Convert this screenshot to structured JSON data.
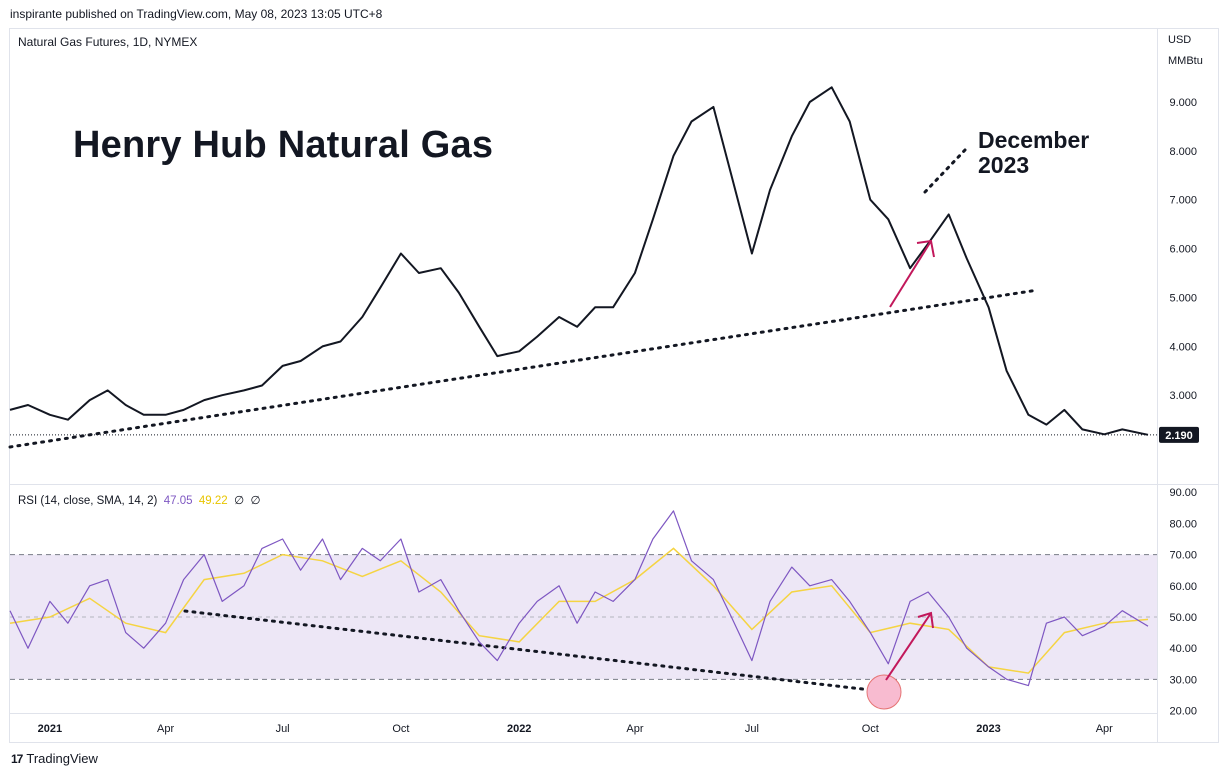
{
  "header": {
    "publisher_line": "inspirante published on TradingView.com, May 08, 2023 13:05 UTC+8",
    "symbol": "Natural Gas Futures, 1D, NYMEX",
    "currency": "USD",
    "unit": "MMBtu"
  },
  "annotations": {
    "headline": "Henry Hub Natural Gas",
    "callout_line1": "December",
    "callout_line2": "2023"
  },
  "rsi_legend": {
    "label": "RSI (14, close, SMA, 14, 2)",
    "rsi_value": "47.05",
    "sma_value": "49.22",
    "extra1": "∅",
    "extra2": "∅"
  },
  "footer": {
    "brand": "TradingView",
    "brand_mark": "17"
  },
  "colors": {
    "price_line": "#131722",
    "rsi_line": "#7e57c2",
    "rsi_sma": "#f5d442",
    "rsi_band": "#ede7f6",
    "arrow": "#c2185b",
    "circle_fill": "#f8bbd0",
    "circle_stroke": "#e57373"
  },
  "chart_data": [
    {
      "type": "line",
      "x_ticks": [
        "2021",
        "Apr",
        "Jul",
        "Oct",
        "2022",
        "Apr",
        "Jul",
        "Oct",
        "2023",
        "Apr"
      ],
      "y_ticks": [
        "3.000",
        "4.000",
        "5.000",
        "6.000",
        "7.000",
        "8.000",
        "9.000"
      ],
      "ylim": [
        1.9,
        9.9
      ],
      "last_price": 2.19,
      "last_price_label": "2.190",
      "series": [
        {
          "x": [
            "2020-12-01",
            "2020-12-15",
            "2021-01-01",
            "2021-01-15",
            "2021-02-01",
            "2021-02-15",
            "2021-03-01",
            "2021-03-15",
            "2021-04-01",
            "2021-04-15",
            "2021-05-01",
            "2021-05-15",
            "2021-06-01",
            "2021-06-15",
            "2021-07-01",
            "2021-07-15",
            "2021-08-01",
            "2021-08-15",
            "2021-09-01",
            "2021-09-15",
            "2021-10-01",
            "2021-10-15",
            "2021-11-01",
            "2021-11-15",
            "2021-12-01",
            "2021-12-15",
            "2022-01-01",
            "2022-01-15",
            "2022-02-01",
            "2022-02-15",
            "2022-03-01",
            "2022-03-15",
            "2022-04-01",
            "2022-04-15",
            "2022-05-01",
            "2022-05-15",
            "2022-06-01",
            "2022-06-15",
            "2022-07-01",
            "2022-07-15",
            "2022-08-01",
            "2022-08-15",
            "2022-09-01",
            "2022-09-15",
            "2022-10-01",
            "2022-10-15",
            "2022-11-01",
            "2022-11-15",
            "2022-12-01",
            "2022-12-15",
            "2023-01-01",
            "2023-01-15",
            "2023-02-01",
            "2023-02-15",
            "2023-03-01",
            "2023-03-15",
            "2023-04-01",
            "2023-04-15",
            "2023-05-05"
          ],
          "values": [
            2.7,
            2.8,
            2.6,
            2.5,
            2.9,
            3.1,
            2.8,
            2.6,
            2.6,
            2.7,
            2.9,
            3.0,
            3.1,
            3.2,
            3.6,
            3.7,
            4.0,
            4.1,
            4.6,
            5.2,
            5.9,
            5.5,
            5.6,
            5.1,
            4.4,
            3.8,
            3.9,
            4.2,
            4.6,
            4.4,
            4.8,
            4.8,
            5.5,
            6.6,
            7.9,
            8.6,
            8.9,
            7.5,
            5.9,
            7.2,
            8.3,
            9.0,
            9.3,
            8.6,
            7.0,
            6.6,
            5.6,
            6.1,
            6.7,
            5.8,
            4.8,
            3.5,
            2.6,
            2.4,
            2.7,
            2.3,
            2.2,
            2.3,
            2.19
          ]
        }
      ]
    },
    {
      "type": "line",
      "title": "RSI (14, close, SMA, 14, 2)",
      "y_ticks": [
        "20.00",
        "30.00",
        "40.00",
        "50.00",
        "60.00",
        "70.00",
        "80.00",
        "90.00"
      ],
      "ylim": [
        16,
        92
      ],
      "bands": [
        30,
        50,
        70
      ],
      "series": [
        {
          "name": "RSI",
          "x": [
            "2020-12-01",
            "2020-12-15",
            "2021-01-01",
            "2021-01-15",
            "2021-02-01",
            "2021-02-15",
            "2021-03-01",
            "2021-03-15",
            "2021-04-01",
            "2021-04-15",
            "2021-05-01",
            "2021-05-15",
            "2021-06-01",
            "2021-06-15",
            "2021-07-01",
            "2021-07-15",
            "2021-08-01",
            "2021-08-15",
            "2021-09-01",
            "2021-09-15",
            "2021-10-01",
            "2021-10-15",
            "2021-11-01",
            "2021-11-15",
            "2021-12-01",
            "2021-12-15",
            "2022-01-01",
            "2022-01-15",
            "2022-02-01",
            "2022-02-15",
            "2022-03-01",
            "2022-03-15",
            "2022-04-01",
            "2022-04-15",
            "2022-05-01",
            "2022-05-15",
            "2022-06-01",
            "2022-06-15",
            "2022-07-01",
            "2022-07-15",
            "2022-08-01",
            "2022-08-15",
            "2022-09-01",
            "2022-09-15",
            "2022-10-01",
            "2022-10-15",
            "2022-11-01",
            "2022-11-15",
            "2022-12-01",
            "2022-12-15",
            "2023-01-01",
            "2023-01-15",
            "2023-02-01",
            "2023-02-15",
            "2023-03-01",
            "2023-03-15",
            "2023-04-01",
            "2023-04-15",
            "2023-05-05"
          ],
          "values": [
            52,
            40,
            55,
            48,
            60,
            62,
            45,
            40,
            48,
            62,
            70,
            55,
            60,
            72,
            75,
            65,
            75,
            62,
            72,
            68,
            75,
            58,
            62,
            52,
            42,
            36,
            48,
            55,
            60,
            48,
            58,
            55,
            62,
            75,
            84,
            68,
            62,
            50,
            36,
            55,
            66,
            60,
            62,
            55,
            45,
            35,
            55,
            58,
            50,
            40,
            34,
            30,
            28,
            48,
            50,
            44,
            47,
            52,
            47.05
          ]
        },
        {
          "name": "SMA",
          "x": [
            "2020-12-01",
            "2021-01-01",
            "2021-02-01",
            "2021-03-01",
            "2021-04-01",
            "2021-05-01",
            "2021-06-01",
            "2021-07-01",
            "2021-08-01",
            "2021-09-01",
            "2021-10-01",
            "2021-11-01",
            "2021-12-01",
            "2022-01-01",
            "2022-02-01",
            "2022-03-01",
            "2022-04-01",
            "2022-05-01",
            "2022-06-01",
            "2022-07-01",
            "2022-08-01",
            "2022-09-01",
            "2022-10-01",
            "2022-11-01",
            "2022-12-01",
            "2023-01-01",
            "2023-02-01",
            "2023-03-01",
            "2023-04-01",
            "2023-05-05"
          ],
          "values": [
            48,
            50,
            56,
            48,
            45,
            62,
            64,
            70,
            68,
            63,
            68,
            58,
            44,
            42,
            55,
            55,
            62,
            72,
            60,
            46,
            58,
            60,
            45,
            48,
            46,
            34,
            32,
            45,
            48,
            49.22
          ]
        }
      ]
    }
  ]
}
